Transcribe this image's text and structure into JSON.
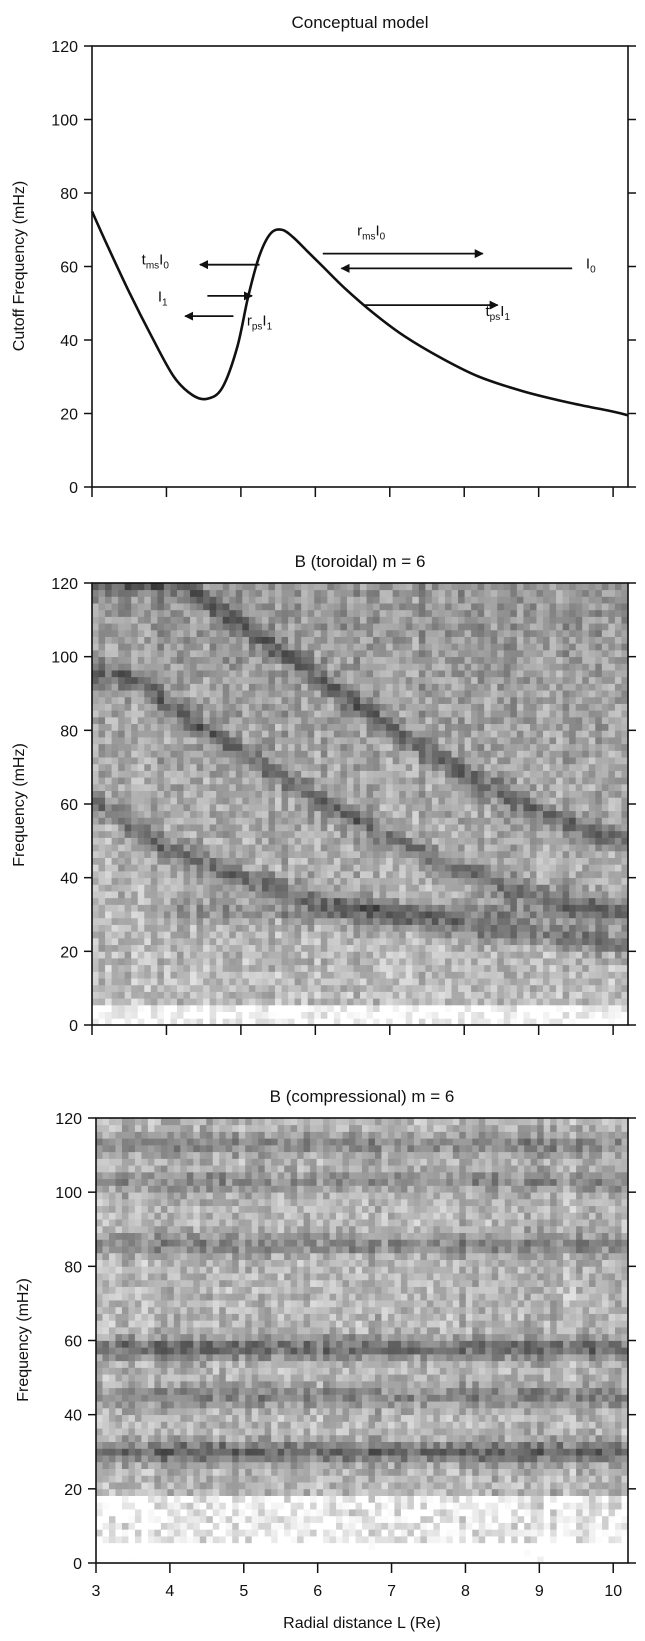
{
  "chart_data": [
    {
      "type": "line",
      "title": "Conceptual model",
      "xlabel": "",
      "ylabel": "Cutoff Frequency (mHz)",
      "xlim": [
        3,
        10.2
      ],
      "ylim": [
        0,
        120
      ],
      "xticks": [
        3,
        4,
        5,
        6,
        7,
        8,
        9,
        10
      ],
      "yticks": [
        0,
        20,
        40,
        60,
        80,
        100,
        120
      ],
      "yticks_labels": [
        "0",
        "20",
        "40",
        "60",
        "80",
        "100",
        "120"
      ],
      "grid": false,
      "series": [
        {
          "x": [
            3.0,
            3.2,
            3.5,
            3.8,
            4.1,
            4.35,
            4.55,
            4.75,
            4.95,
            5.1,
            5.25,
            5.4,
            5.55,
            5.7,
            5.9,
            6.1,
            6.4,
            6.8,
            7.2,
            7.7,
            8.2,
            8.8,
            9.4,
            10.0,
            10.2
          ],
          "values": [
            75,
            66,
            53,
            41,
            30,
            25,
            24,
            27,
            38,
            52,
            63,
            69,
            70,
            68,
            64,
            60,
            54,
            47,
            41,
            35,
            30,
            26,
            23,
            20.5,
            19.5
          ]
        }
      ],
      "annotations": [
        {
          "base": "t",
          "sub": "ms",
          "tail": "I",
          "tail_sub": "0",
          "x": 3.85,
          "y": 60.5
        },
        {
          "base": "I",
          "sub": "1",
          "tail": "",
          "tail_sub": "",
          "x": 3.95,
          "y": 50.5
        },
        {
          "base": "r",
          "sub": "ps",
          "tail": "I",
          "tail_sub": "1",
          "x": 5.25,
          "y": 44
        },
        {
          "base": "r",
          "sub": "ms",
          "tail": "I",
          "tail_sub": "0",
          "x": 6.75,
          "y": 68.5
        },
        {
          "base": "I",
          "sub": "0",
          "tail": "",
          "tail_sub": "",
          "x": 9.7,
          "y": 59.5
        },
        {
          "base": "t",
          "sub": "ps",
          "tail": "I",
          "tail_sub": "1",
          "x": 8.45,
          "y": 46.5
        }
      ],
      "arrows": [
        {
          "from": [
            5.25,
            60.5
          ],
          "to": [
            4.45,
            60.5
          ]
        },
        {
          "from": [
            4.55,
            52
          ],
          "to": [
            5.15,
            52
          ]
        },
        {
          "from": [
            4.9,
            46.5
          ],
          "to": [
            4.25,
            46.5
          ]
        },
        {
          "from": [
            6.1,
            63.5
          ],
          "to": [
            8.25,
            63.5
          ]
        },
        {
          "from": [
            9.45,
            59.5
          ],
          "to": [
            6.35,
            59.5
          ]
        },
        {
          "from": [
            6.65,
            49.5
          ],
          "to": [
            8.45,
            49.5
          ]
        }
      ]
    },
    {
      "type": "heatmap",
      "title": "B (toroidal) m = 6",
      "xlabel": "",
      "ylabel": "Frequency (mHz)",
      "xlim": [
        3,
        10.2
      ],
      "ylim": [
        0,
        120
      ],
      "xticks": [
        3,
        4,
        5,
        6,
        7,
        8,
        9,
        10
      ],
      "yticks": [
        0,
        20,
        40,
        60,
        80,
        100,
        120
      ],
      "yticks_labels": [
        "0",
        "20",
        "40",
        "60",
        "80",
        "100",
        "120"
      ],
      "colormap": "grayscale-stipple",
      "features": [
        {
          "kind": "diagonal-band",
          "points": [
            [
              3.0,
              62
            ],
            [
              4.0,
              48
            ],
            [
              5.0,
              40
            ],
            [
              6.0,
              34
            ],
            [
              7.0,
              30
            ],
            [
              8.0,
              27
            ],
            [
              9.0,
              25
            ],
            [
              10.2,
              22
            ]
          ]
        },
        {
          "kind": "diagonal-band",
          "points": [
            [
              3.5,
              95
            ],
            [
              4.5,
              80
            ],
            [
              5.5,
              68
            ],
            [
              6.5,
              56
            ],
            [
              7.5,
              46
            ],
            [
              8.5,
              38
            ],
            [
              9.5,
              33
            ],
            [
              10.2,
              30
            ]
          ]
        },
        {
          "kind": "diagonal-band",
          "points": [
            [
              4.2,
              120
            ],
            [
              5.2,
              106
            ],
            [
              6.2,
              92
            ],
            [
              7.2,
              78
            ],
            [
              8.2,
              66
            ],
            [
              9.2,
              56
            ],
            [
              10.2,
              50
            ]
          ]
        },
        {
          "kind": "horizontal-band",
          "y": 31,
          "x_range": [
            4.0,
            10.2
          ]
        }
      ]
    },
    {
      "type": "heatmap",
      "title": "B (compressional) m = 6",
      "xlabel": "Radial distance L (Re)",
      "ylabel": "Frequency (mHz)",
      "xlim": [
        3,
        10.2
      ],
      "ylim": [
        0,
        120
      ],
      "xticks": [
        3,
        4,
        5,
        6,
        7,
        8,
        9,
        10
      ],
      "xticks_labels": [
        "3",
        "4",
        "5",
        "6",
        "7",
        "8",
        "9",
        "10"
      ],
      "yticks": [
        0,
        20,
        40,
        60,
        80,
        100,
        120
      ],
      "yticks_labels": [
        "0",
        "20",
        "40",
        "60",
        "80",
        "100",
        "120"
      ],
      "colormap": "grayscale-stipple",
      "features": [
        {
          "kind": "horizontal-band",
          "y": 30,
          "strength": 0.95
        },
        {
          "kind": "horizontal-band",
          "y": 58,
          "strength": 0.9
        },
        {
          "kind": "horizontal-band",
          "y": 45,
          "strength": 0.6
        },
        {
          "kind": "horizontal-band",
          "y": 86,
          "strength": 0.55
        },
        {
          "kind": "horizontal-band",
          "y": 103,
          "strength": 0.5
        },
        {
          "kind": "horizontal-band",
          "y": 113,
          "strength": 0.55
        }
      ]
    }
  ]
}
